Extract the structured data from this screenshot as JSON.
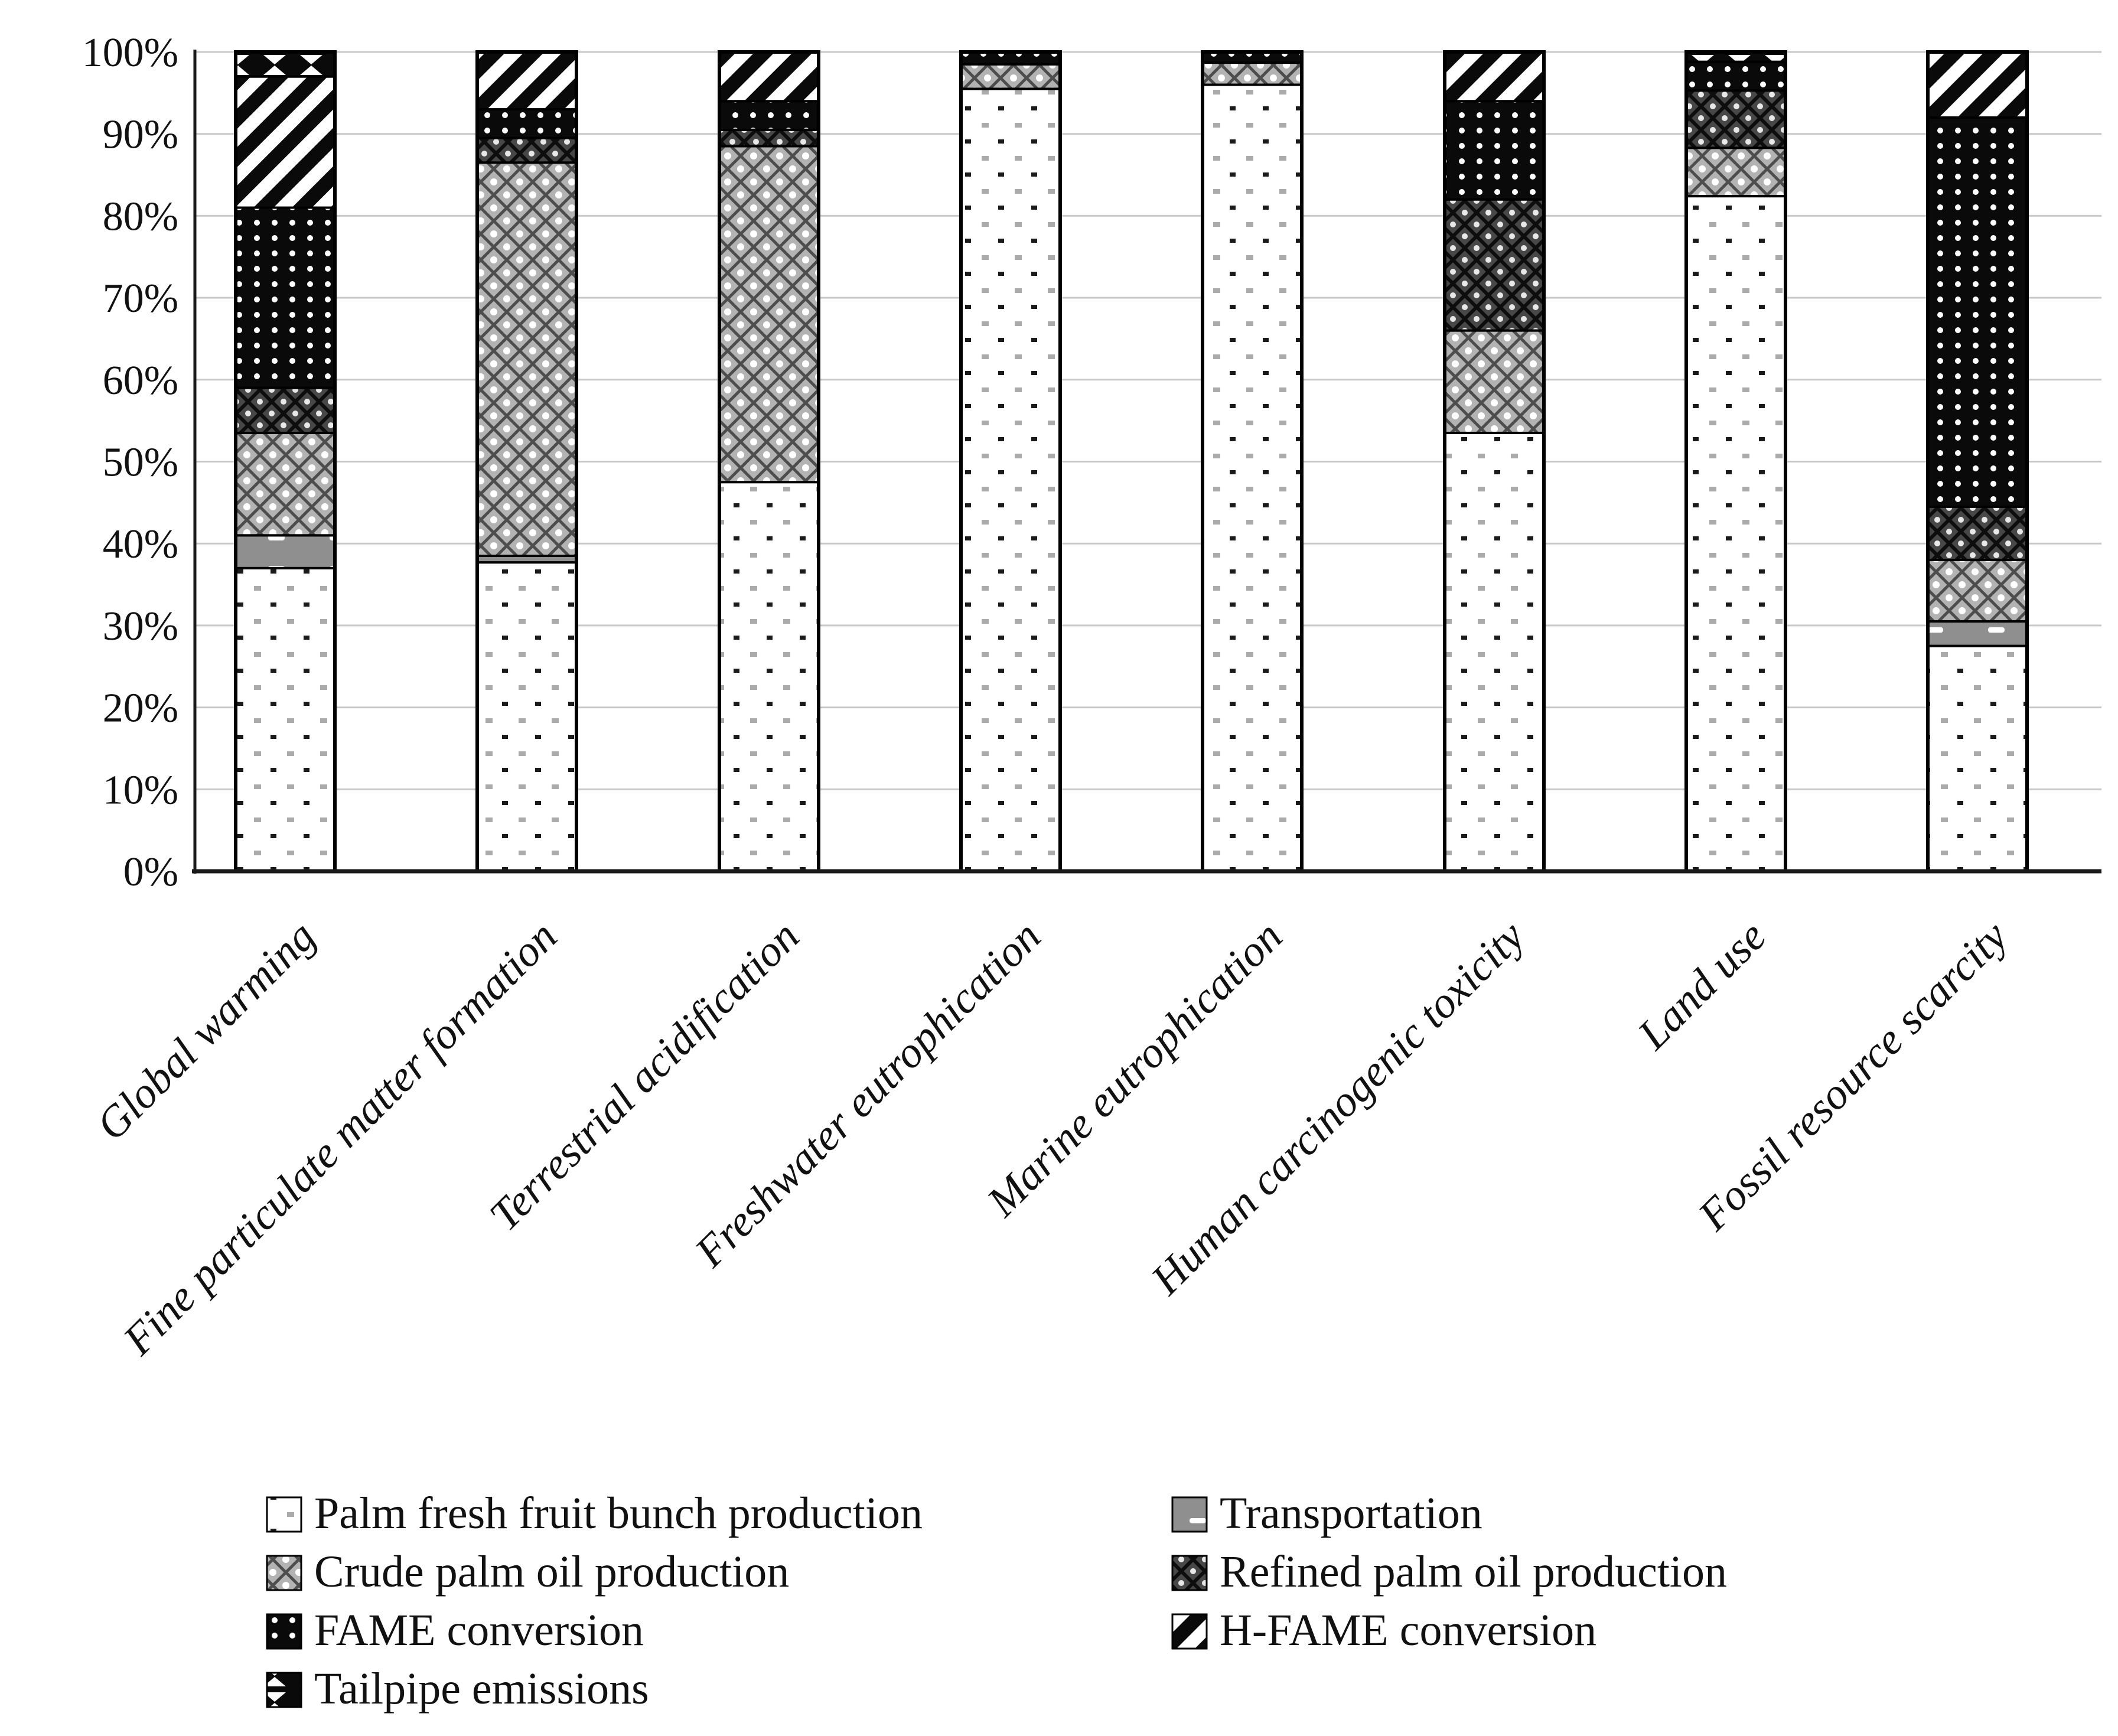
{
  "chart_data": {
    "type": "bar",
    "variant": "100-percent-stacked-vertical",
    "title": "",
    "xlabel": "",
    "ylabel": "",
    "ylim": [
      0,
      100
    ],
    "grid": true,
    "legend_position": "bottom",
    "yticks": [
      "0%",
      "10%",
      "20%",
      "30%",
      "40%",
      "50%",
      "60%",
      "70%",
      "80%",
      "90%",
      "100%"
    ],
    "categories": [
      "Global warming",
      "Fine particulate matter formation",
      "Terrestrial acidification",
      "Freshwater eutrophication",
      "Marine eutrophication",
      "Human carcinogenic toxicity",
      "Land use",
      "Fossil resource scarcity"
    ],
    "series": [
      {
        "name": "Palm fresh fruit bunch production",
        "pattern": "ffb-dots-pattern",
        "values": [
          37.0,
          37.7,
          47.5,
          95.5,
          96.0,
          53.5,
          82.4,
          27.5
        ]
      },
      {
        "name": "Transportation",
        "pattern": "transport-gray-pattern",
        "values": [
          4.0,
          0.8,
          0.0,
          0.0,
          0.0,
          0.0,
          0.0,
          3.0
        ]
      },
      {
        "name": "Crude palm oil production",
        "pattern": "crude-lattice-pattern",
        "values": [
          12.5,
          48.0,
          41.0,
          3.0,
          2.7,
          12.5,
          5.9,
          7.5
        ]
      },
      {
        "name": "Refined palm oil production",
        "pattern": "refined-lattice-pattern",
        "values": [
          5.5,
          3.0,
          2.0,
          0.0,
          0.0,
          16.0,
          7.0,
          6.5
        ]
      },
      {
        "name": "FAME conversion",
        "pattern": "fame-dots-pattern",
        "values": [
          22.0,
          3.5,
          3.5,
          1.5,
          1.3,
          12.0,
          3.5,
          47.5
        ]
      },
      {
        "name": "H-FAME conversion",
        "pattern": "hfame-stripes-pattern",
        "values": [
          16.0,
          7.0,
          6.0,
          0.0,
          0.0,
          6.0,
          0.0,
          8.0
        ]
      },
      {
        "name": "Tailpipe emissions",
        "pattern": "tailpipe-bowtie-pattern",
        "values": [
          3.0,
          0.0,
          0.0,
          0.0,
          0.0,
          0.0,
          1.2,
          0.0
        ]
      }
    ],
    "legend_columns": [
      [
        "Palm fresh fruit bunch production",
        "Crude palm oil production",
        "FAME conversion",
        "Tailpipe emissions"
      ],
      [
        "Transportation",
        "Refined palm oil production",
        "H-FAME conversion"
      ]
    ],
    "colors": {
      "axis": "#1a1a1a",
      "gridline": "#c9c9c9",
      "black_fill": "#0a0a0a",
      "transport_gray": "#8f8f8f",
      "crude_gray": "#b3b3b3",
      "refined_gray": "#474747",
      "background": "#ffffff"
    }
  }
}
